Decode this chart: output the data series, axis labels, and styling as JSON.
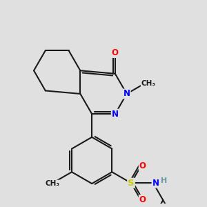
{
  "bg_color": "#e0e0e0",
  "bond_color": "#1a1a1a",
  "atom_colors": {
    "O": "#ff0000",
    "N": "#0000ff",
    "S": "#cccc00",
    "H": "#6699aa",
    "C": "#1a1a1a"
  },
  "lw": 1.5,
  "font_size_atom": 8.5,
  "font_size_small": 7.5
}
